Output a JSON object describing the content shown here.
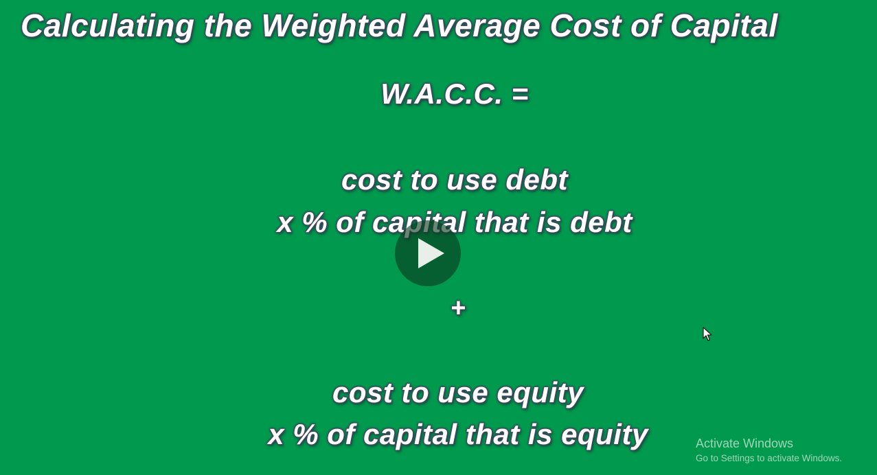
{
  "slide": {
    "title": "Calculating the Weighted Average Cost of Capital",
    "equation_label": "W.A.C.C. =",
    "debt_line_1": "cost to use debt",
    "debt_line_2": "x % of capital that is debt",
    "operator": "+",
    "equity_line_1": "cost to use equity",
    "equity_line_2": "x % of capital that is equity",
    "background_color": "#00994d"
  },
  "video": {
    "play_icon": "play-icon"
  },
  "watermark": {
    "heading": "Activate Windows",
    "subtext": "Go to Settings to activate Windows."
  },
  "cursor": {
    "icon": "mouse-pointer-icon"
  }
}
